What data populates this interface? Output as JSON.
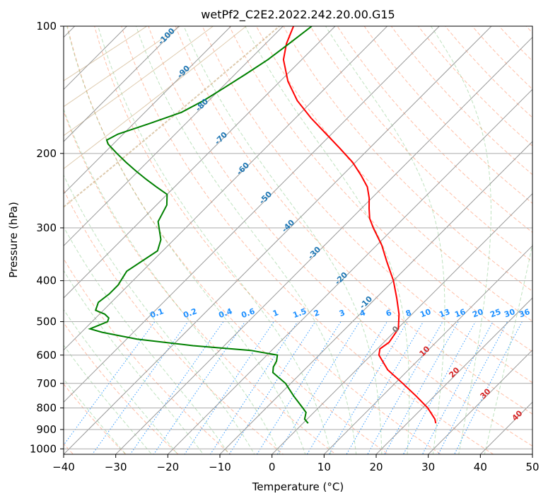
{
  "chart_data": {
    "type": "line",
    "title": "wetPf2_C2E2.2022.242.20.00.G15",
    "xlabel": "Temperature (°C)",
    "ylabel": "Pressure (hPa)",
    "xlim": [
      -40,
      50
    ],
    "ylim": [
      1030,
      100
    ],
    "y_scale": "log",
    "skew_degrees": 45,
    "grid": true,
    "x_ticks": [
      -40,
      -30,
      -20,
      -10,
      0,
      10,
      20,
      30,
      40,
      50
    ],
    "x_tick_labels": [
      "−40",
      "−30",
      "−20",
      "−10",
      "0",
      "10",
      "20",
      "30",
      "40",
      "50"
    ],
    "y_ticks": [
      100,
      200,
      300,
      400,
      500,
      600,
      700,
      800,
      900,
      1000
    ],
    "y_tick_labels": [
      "100",
      "200",
      "300",
      "400",
      "500",
      "600",
      "700",
      "800",
      "900",
      "1000"
    ],
    "series": [
      {
        "color": "#ff0000",
        "p": [
          870,
          850,
          800,
          750,
          700,
          650,
          600,
          580,
          560,
          520,
          480,
          440,
          400,
          360,
          330,
          300,
          285,
          270,
          255,
          240,
          225,
          210,
          195,
          180,
          165,
          150,
          135,
          120,
          110,
          100
        ],
        "t": [
          25.5,
          24.5,
          21.0,
          16.5,
          11.5,
          6.0,
          1.5,
          0.5,
          1.0,
          0.2,
          -2.5,
          -6.0,
          -10.0,
          -15.0,
          -19.0,
          -24.0,
          -26.5,
          -28.5,
          -30.5,
          -33.0,
          -36.5,
          -40.5,
          -45.5,
          -51.0,
          -57.0,
          -63.0,
          -68.5,
          -73.5,
          -76.0,
          -78.0
        ]
      },
      {
        "color": "#008000",
        "p": [
          870,
          850,
          820,
          800,
          750,
          700,
          660,
          640,
          620,
          600,
          585,
          570,
          550,
          530,
          520,
          510,
          500,
          490,
          480,
          470,
          450,
          430,
          410,
          380,
          340,
          320,
          290,
          265,
          250,
          240,
          230,
          220,
          210,
          200,
          190,
          186,
          180,
          170,
          160,
          150,
          140,
          130,
          120,
          110,
          100
        ],
        "t": [
          1.0,
          -0.5,
          -1.5,
          -3.0,
          -7.0,
          -11.0,
          -15.5,
          -16.5,
          -17.0,
          -18.0,
          -24.0,
          -36.0,
          -48.0,
          -56.0,
          -59.0,
          -58.0,
          -57.0,
          -57.5,
          -59.0,
          -61.5,
          -62.5,
          -62.0,
          -62.0,
          -63.0,
          -61.0,
          -62.5,
          -66.5,
          -68.0,
          -70.0,
          -73.5,
          -77.0,
          -80.5,
          -84.0,
          -87.5,
          -91.0,
          -92.0,
          -91.0,
          -87.0,
          -83.0,
          -81.0,
          -79.5,
          -78.0,
          -76.5,
          -75.5,
          -74.5
        ]
      }
    ],
    "dry_adiabat_labels": [
      "-100",
      "-90",
      "-80",
      "-70",
      "-60",
      "-50",
      "-40",
      "-30",
      "-20",
      "-10"
    ],
    "zero_label": "0",
    "moist_adiabat_labels": [
      "10",
      "20",
      "30",
      "40"
    ],
    "mixing_ratio_labels": [
      "0.1",
      "0.2",
      "0.4",
      "0.6",
      "1",
      "1.5",
      "2",
      "3",
      "4",
      "6",
      "8",
      "10",
      "13",
      "16",
      "20",
      "25",
      "30",
      "36"
    ]
  }
}
